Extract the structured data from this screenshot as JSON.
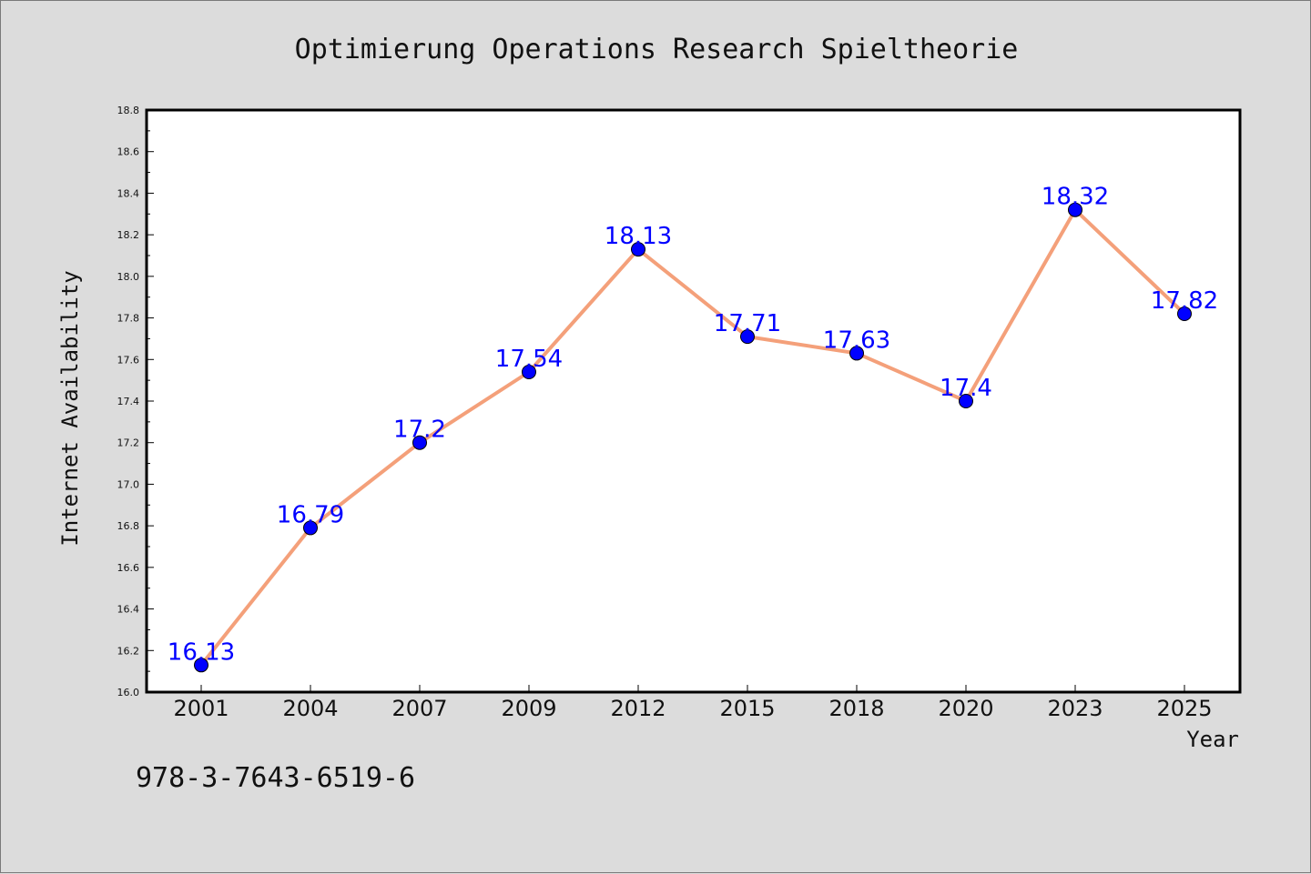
{
  "chart_data": {
    "type": "line",
    "title": "Optimierung Operations Research Spieltheorie",
    "xlabel": "Year",
    "ylabel": "Internet Availability",
    "categories": [
      "2001",
      "2004",
      "2007",
      "2009",
      "2012",
      "2015",
      "2018",
      "2020",
      "2023",
      "2025"
    ],
    "series": [
      {
        "values": [
          16.13,
          16.79,
          17.2,
          17.54,
          18.13,
          17.71,
          17.63,
          17.4,
          18.32,
          17.82
        ],
        "labels": [
          "16.13",
          "16.79",
          "17.2",
          "17.54",
          "18.13",
          "17.71",
          "17.63",
          "17.4",
          "18.32",
          "17.82"
        ],
        "line_color": "#f4a07a",
        "marker_color": "#0000ff"
      }
    ],
    "ylim": [
      16.0,
      18.8
    ],
    "yticks": [
      16.0,
      16.2,
      16.4,
      16.6,
      16.8,
      17.0,
      17.2,
      17.4,
      17.6,
      17.8,
      18.0,
      18.2,
      18.4,
      18.6,
      18.8
    ],
    "ytick_labels": [
      "16.0",
      "16.2",
      "16.4",
      "16.6",
      "16.8",
      "17.0",
      "17.2",
      "17.4",
      "17.6",
      "17.8",
      "18.0",
      "18.2",
      "18.4",
      "18.6",
      "18.8"
    ],
    "grid": false,
    "legend": "none",
    "background_color": "#dcdcdc",
    "plot_background_color": "#ffffff"
  },
  "footer": {
    "code": "978-3-7643-6519-6"
  }
}
